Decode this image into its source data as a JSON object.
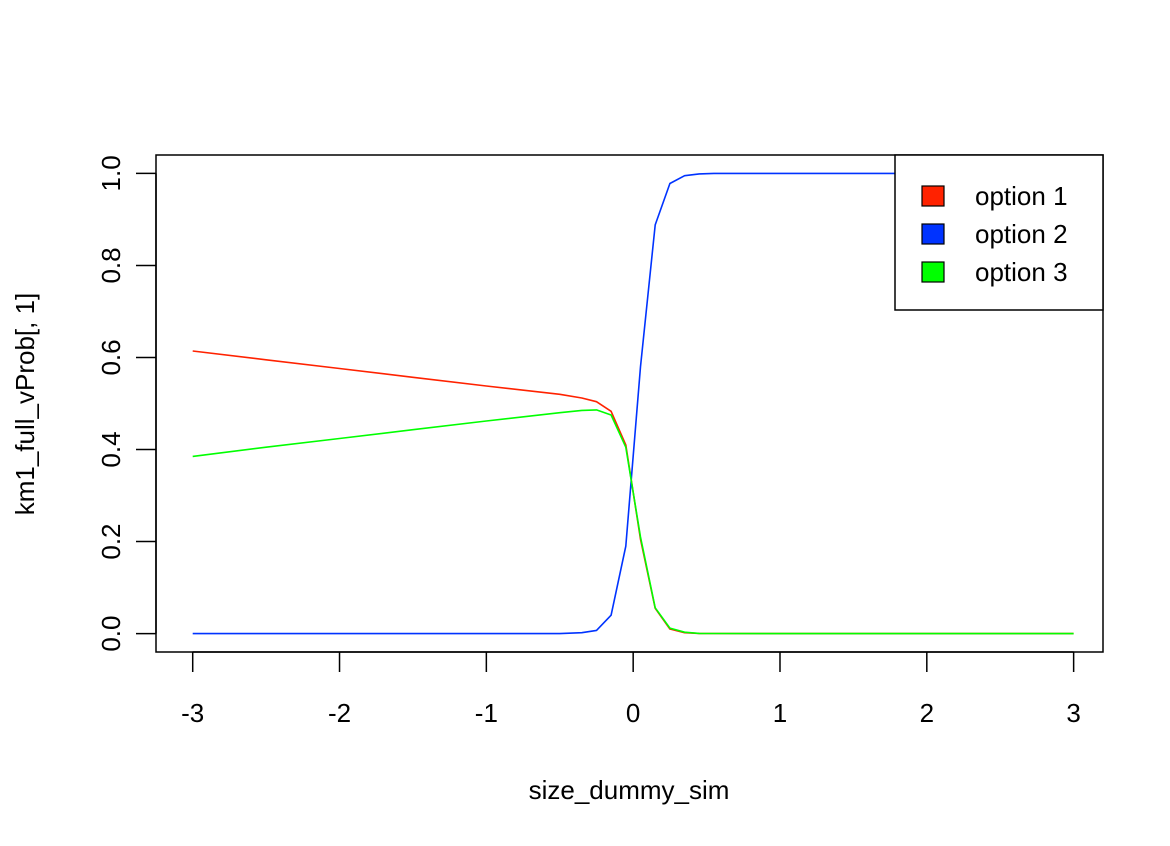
{
  "chart_data": {
    "type": "line",
    "title": "",
    "xlabel": "size_dummy_sim",
    "ylabel": "km1_full_vProb[, 1]",
    "xlim": [
      -3.25,
      3.2
    ],
    "ylim": [
      -0.04,
      1.04
    ],
    "x_ticks": [
      -3,
      -2,
      -1,
      0,
      1,
      2,
      3
    ],
    "y_ticks": [
      0.0,
      0.2,
      0.4,
      0.6,
      0.8,
      1.0
    ],
    "x_tick_labels": [
      "-3",
      "-2",
      "-1",
      "0",
      "1",
      "2",
      "3"
    ],
    "y_tick_labels": [
      "0.0",
      "0.2",
      "0.4",
      "0.6",
      "0.8",
      "1.0"
    ],
    "grid": false,
    "legend": {
      "position": "top-right"
    },
    "x": [
      -3.0,
      -2.5,
      -2.0,
      -1.5,
      -1.0,
      -0.5,
      -0.35,
      -0.25,
      -0.15,
      -0.05,
      0.05,
      0.15,
      0.25,
      0.35,
      0.45,
      0.55,
      1.0,
      2.0,
      3.0
    ],
    "series": [
      {
        "name": "option 1",
        "color": "#ff2200",
        "values": [
          0.614,
          0.595,
          0.576,
          0.557,
          0.538,
          0.52,
          0.512,
          0.504,
          0.483,
          0.41,
          0.205,
          0.055,
          0.01,
          0.002,
          0.0005,
          0.0002,
          0.0,
          0.0,
          0.0
        ]
      },
      {
        "name": "option 2",
        "color": "#0033ff",
        "values": [
          0.0,
          0.0,
          0.0,
          0.0,
          0.0,
          0.0,
          0.002,
          0.007,
          0.04,
          0.19,
          0.58,
          0.888,
          0.978,
          0.995,
          0.999,
          1.0,
          1.0,
          1.0,
          1.0
        ]
      },
      {
        "name": "option 3",
        "color": "#00ff00",
        "values": [
          0.385,
          0.405,
          0.424,
          0.443,
          0.462,
          0.48,
          0.485,
          0.486,
          0.475,
          0.405,
          0.21,
          0.056,
          0.012,
          0.003,
          0.0005,
          0.0002,
          0.0,
          0.0,
          0.0
        ]
      }
    ]
  }
}
